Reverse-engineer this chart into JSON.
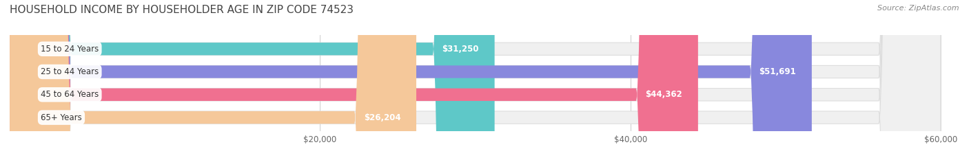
{
  "title": "HOUSEHOLD INCOME BY HOUSEHOLDER AGE IN ZIP CODE 74523",
  "source": "Source: ZipAtlas.com",
  "categories": [
    "15 to 24 Years",
    "25 to 44 Years",
    "45 to 64 Years",
    "65+ Years"
  ],
  "values": [
    31250,
    51691,
    44362,
    26204
  ],
  "value_labels": [
    "$31,250",
    "$51,691",
    "$44,362",
    "$26,204"
  ],
  "bar_colors": [
    "#5ec8c8",
    "#8888dd",
    "#f07090",
    "#f5c89a"
  ],
  "bar_track_color": "#f0f0f0",
  "bar_height": 0.55,
  "xmin": 0,
  "xmax": 60000,
  "xticks": [
    20000,
    40000,
    60000
  ],
  "xtick_labels": [
    "$20,000",
    "$40,000",
    "$60,000"
  ],
  "bg_color": "#ffffff",
  "title_color": "#444444",
  "title_fontsize": 11,
  "source_color": "#888888",
  "label_fontsize": 8.5,
  "value_fontsize": 8.5,
  "tick_fontsize": 8.5
}
